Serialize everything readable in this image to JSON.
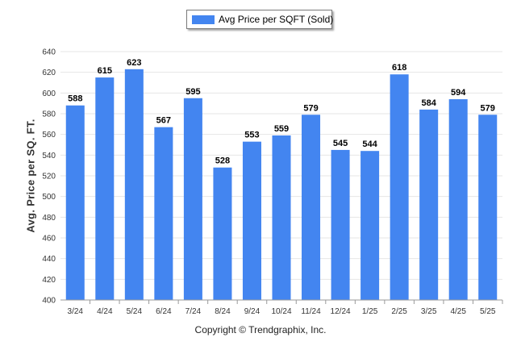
{
  "colors": {
    "bar": "#4385f0",
    "grid": "#e6e6e6",
    "axis": "#999999",
    "text": "#333333"
  },
  "legend": {
    "label": "Avg Price per SQFT (Sold)"
  },
  "footer": {
    "copyright": "Copyright © Trendgraphix, Inc."
  },
  "chart_data": {
    "type": "bar",
    "categories": [
      "3/24",
      "4/24",
      "5/24",
      "6/24",
      "7/24",
      "8/24",
      "9/24",
      "10/24",
      "11/24",
      "12/24",
      "1/25",
      "2/25",
      "3/25",
      "4/25",
      "5/25"
    ],
    "series": [
      {
        "name": "Avg Price per SQFT (Sold)",
        "values": [
          588,
          615,
          623,
          567,
          595,
          528,
          553,
          559,
          579,
          545,
          544,
          618,
          584,
          594,
          579
        ]
      }
    ],
    "ylabel": "Avg. Price per SQ. FT.",
    "xlabel": "",
    "ylim": [
      400,
      640
    ],
    "yticks": [
      400,
      420,
      440,
      460,
      480,
      500,
      520,
      540,
      560,
      580,
      600,
      620,
      640
    ],
    "grid": true,
    "legend_position": "top-center",
    "data_labels": true
  }
}
